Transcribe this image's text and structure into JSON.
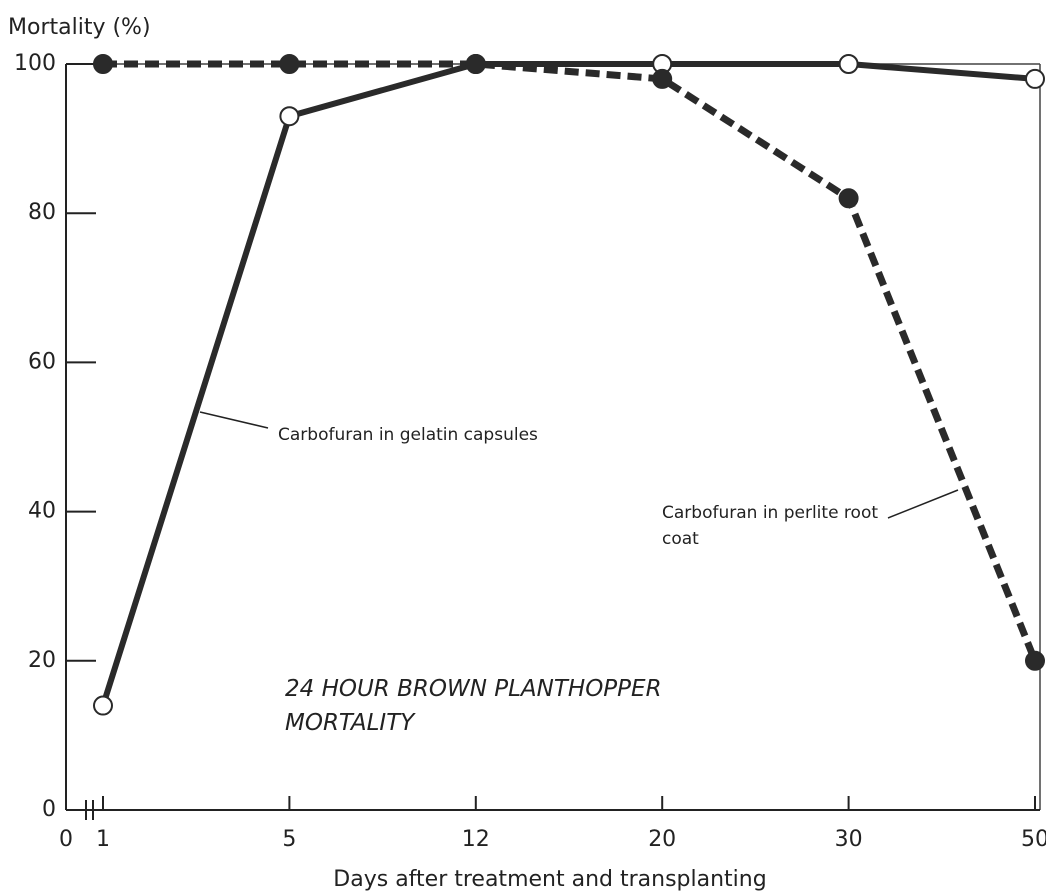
{
  "chart_data": {
    "type": "line",
    "title": "24 HOUR BROWN PLANTHOPPER MORTALITY",
    "y_label": "Mortality (%)",
    "x_label": "Days after treatment and transplanting",
    "categories": [
      "0",
      "1",
      "5",
      "12",
      "20",
      "30",
      "50"
    ],
    "series": [
      {
        "name": "Carbofuran in gelatin capsules",
        "color": "#2a2a2a",
        "dashed": false,
        "marker": "open",
        "values": [
          null,
          14,
          93,
          100,
          100,
          100,
          98
        ]
      },
      {
        "name": "Carbofuran in perlite root coat",
        "color": "#2a2a2a",
        "dashed": true,
        "marker": "filled",
        "values": [
          null,
          100,
          100,
          100,
          98,
          82,
          20
        ]
      }
    ],
    "ylim": [
      0,
      100
    ],
    "yticks": [
      0,
      20,
      40,
      60,
      80,
      100
    ],
    "grid": false
  }
}
